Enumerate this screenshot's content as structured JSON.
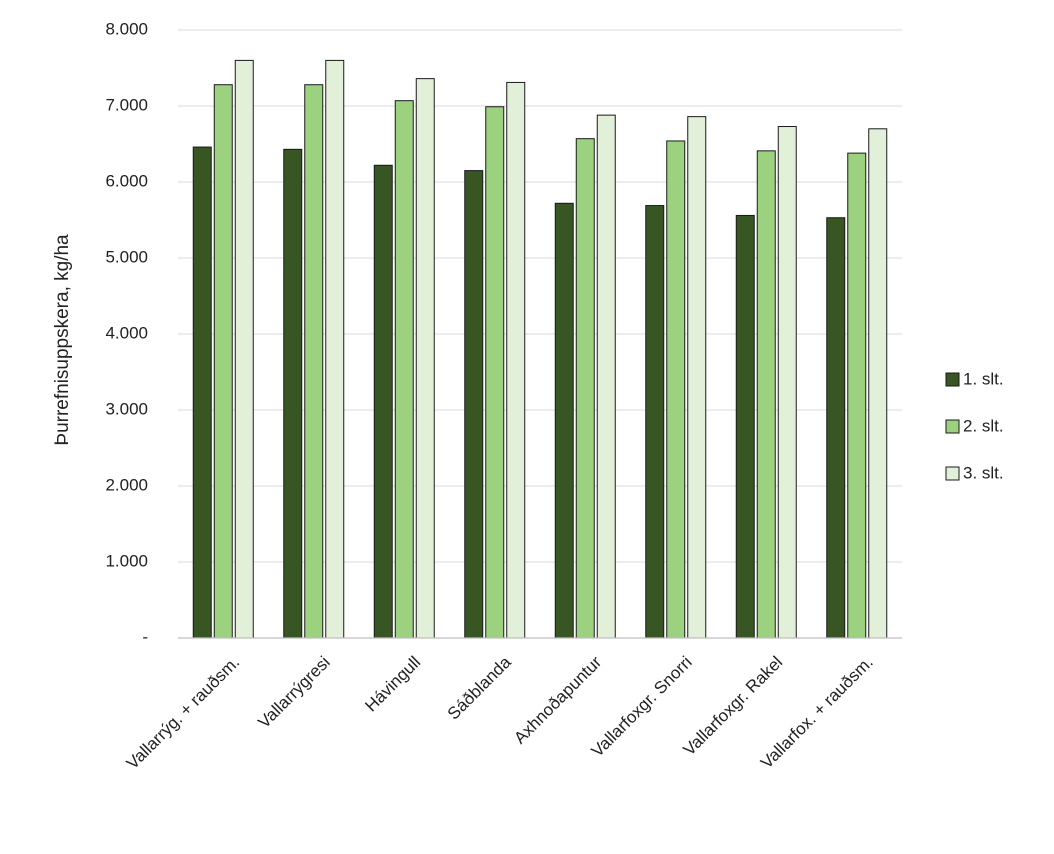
{
  "chart_data": {
    "type": "bar",
    "ylabel": "Þurrefnisuppskera, kg/ha",
    "xlabel": "",
    "ylim": [
      0,
      8000
    ],
    "yticks": [
      0,
      1000,
      2000,
      3000,
      4000,
      5000,
      6000,
      7000,
      8000
    ],
    "ytick_labels": [
      "-",
      "1.000",
      "2.000",
      "3.000",
      "4.000",
      "5.000",
      "6.000",
      "7.000",
      "8.000"
    ],
    "grid": true,
    "legend_position": "right",
    "categories": [
      "Vallarrýg. + rauðsm.",
      "Vallarrýgresi",
      "Hávingull",
      "Sáðblanda",
      "Axhnoðapuntur",
      "Vallarfoxgr. Snorri",
      "Vallarfoxgr. Rakel",
      "Vallarfox. + rauðsm."
    ],
    "series": [
      {
        "name": "1. slt.",
        "color": "#375623",
        "values": [
          6460,
          6430,
          6220,
          6150,
          5720,
          5690,
          5560,
          5530
        ]
      },
      {
        "name": "2. slt.",
        "color": "#9bd17f",
        "values": [
          7280,
          7280,
          7070,
          6990,
          6570,
          6540,
          6410,
          6380
        ]
      },
      {
        "name": "3. slt.",
        "color": "#e2f0d9",
        "values": [
          7600,
          7600,
          7360,
          7310,
          6880,
          6860,
          6730,
          6700
        ]
      }
    ]
  }
}
